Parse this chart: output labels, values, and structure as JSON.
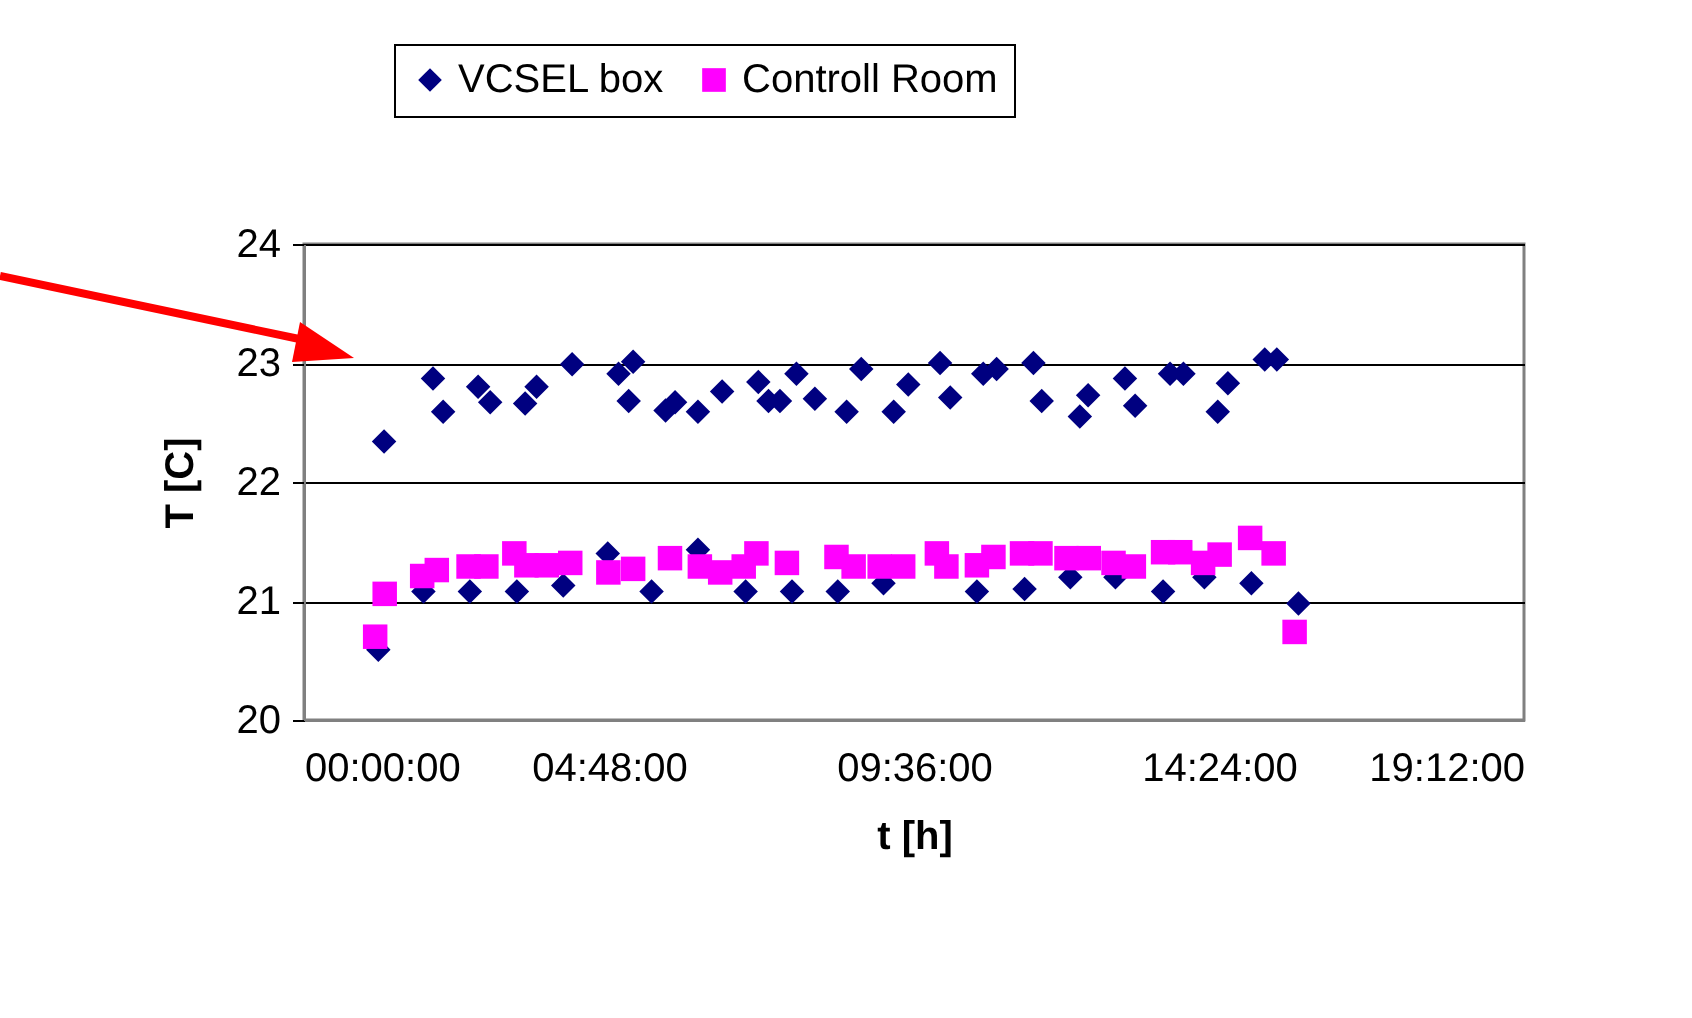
{
  "chart_data": {
    "type": "scatter",
    "xlabel": "t [h]",
    "ylabel": "T [C]",
    "xlim": [
      0,
      19.2
    ],
    "xticks": [
      {
        "value": 0,
        "label": "00:00:00"
      },
      {
        "value": 4.8,
        "label": "04:48:00"
      },
      {
        "value": 9.6,
        "label": "09:36:00"
      },
      {
        "value": 14.4,
        "label": "14:24:00"
      },
      {
        "value": 19.2,
        "label": "19:12:00"
      }
    ],
    "ylim": [
      20,
      24
    ],
    "yticks": [
      20,
      21,
      22,
      23,
      24
    ],
    "grid": "y",
    "legend": "top",
    "series": [
      {
        "name": "VCSEL box",
        "color": "#000080",
        "marker": "diamond",
        "x": [
          1.17,
          1.26,
          1.88,
          2.03,
          2.19,
          2.61,
          2.74,
          2.93,
          3.35,
          3.48,
          3.66,
          4.08,
          4.22,
          4.78,
          4.95,
          5.11,
          5.18,
          5.47,
          5.69,
          5.84,
          6.2,
          6.2,
          6.58,
          6.95,
          7.15,
          7.31,
          7.49,
          7.68,
          7.75,
          8.04,
          8.4,
          8.54,
          8.77,
          9.12,
          9.28,
          9.51,
          10.01,
          10.17,
          10.59,
          10.69,
          10.9,
          11.34,
          11.48,
          11.61,
          12.06,
          12.21,
          12.34,
          12.77,
          12.92,
          13.08,
          13.52,
          13.63,
          13.84,
          14.17,
          14.38,
          14.54,
          14.91,
          15.12,
          15.31,
          15.65
        ],
        "values": [
          20.59,
          22.34,
          21.08,
          22.87,
          22.59,
          21.08,
          22.8,
          22.67,
          21.08,
          22.66,
          22.8,
          21.13,
          22.99,
          21.4,
          22.91,
          22.68,
          23.01,
          21.08,
          22.6,
          22.67,
          22.59,
          21.43,
          22.76,
          21.08,
          22.84,
          22.68,
          22.68,
          21.08,
          22.91,
          22.7,
          21.08,
          22.59,
          22.95,
          21.15,
          22.59,
          22.82,
          23.0,
          22.71,
          21.08,
          22.91,
          22.95,
          21.1,
          23.0,
          22.68,
          21.2,
          22.55,
          22.73,
          21.2,
          22.87,
          22.64,
          21.08,
          22.91,
          22.91,
          21.2,
          22.59,
          22.83,
          21.15,
          23.03,
          23.03,
          20.98
        ]
      },
      {
        "name": "Controll Room",
        "color": "#ff00ff",
        "marker": "square",
        "x": [
          1.12,
          1.27,
          1.86,
          2.09,
          2.59,
          2.87,
          3.31,
          3.5,
          3.82,
          4.19,
          4.79,
          5.18,
          5.76,
          6.23,
          6.55,
          6.92,
          7.12,
          7.6,
          8.38,
          8.65,
          9.06,
          9.43,
          9.96,
          10.11,
          10.59,
          10.85,
          11.3,
          11.59,
          12.0,
          12.35,
          12.74,
          13.06,
          13.52,
          13.79,
          14.15,
          14.41,
          14.89,
          15.26,
          15.59
        ],
        "values": [
          20.7,
          21.06,
          21.21,
          21.26,
          21.29,
          21.29,
          21.4,
          21.3,
          21.3,
          21.32,
          21.24,
          21.27,
          21.36,
          21.29,
          21.24,
          21.29,
          21.4,
          21.32,
          21.37,
          21.29,
          21.29,
          21.29,
          21.4,
          21.29,
          21.3,
          21.37,
          21.4,
          21.4,
          21.36,
          21.36,
          21.32,
          21.29,
          21.41,
          21.41,
          21.32,
          21.39,
          21.53,
          21.4,
          20.74
        ]
      }
    ]
  }
}
